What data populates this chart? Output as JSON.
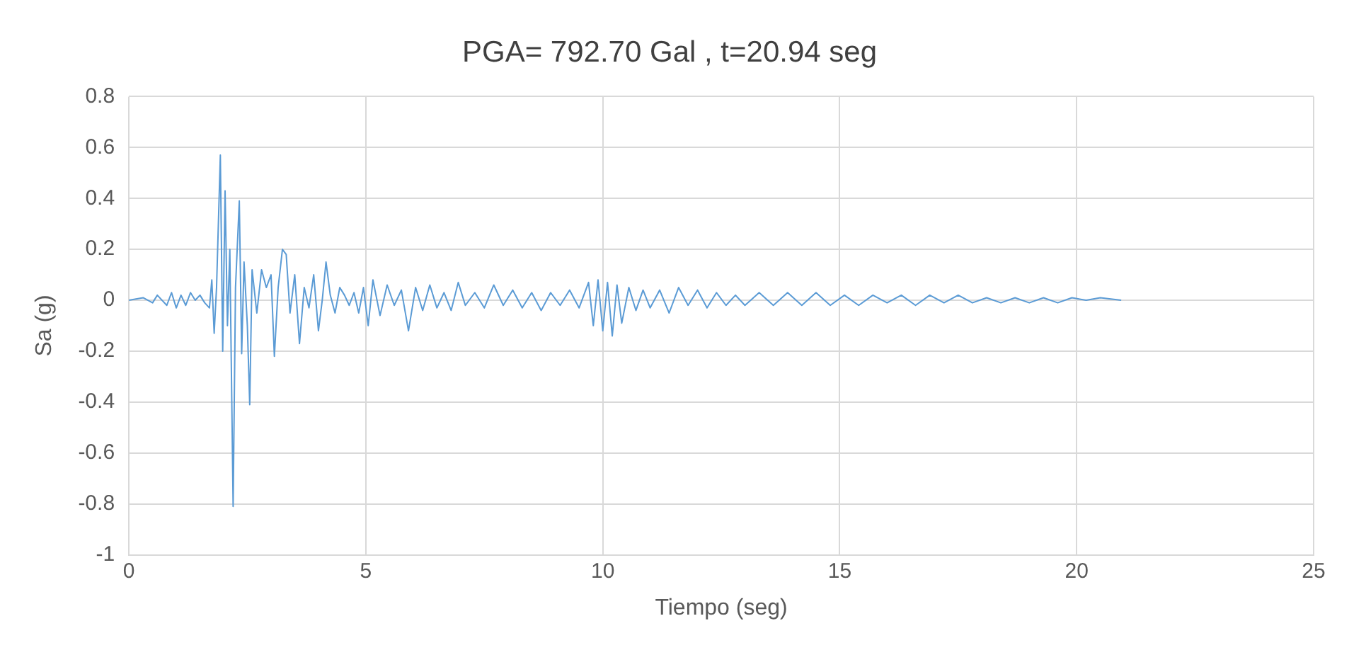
{
  "chart_data": {
    "type": "line",
    "title": "PGA= 792.70 Gal , t=20.94 seg",
    "xlabel": "Tiempo (seg)",
    "ylabel": "Sa (g)",
    "xlim": [
      0,
      25
    ],
    "xticks": [
      0,
      5,
      10,
      15,
      20,
      25
    ],
    "ylim": [
      -1,
      0.8
    ],
    "yticks": [
      0.8,
      0.6,
      0.4,
      0.2,
      0,
      -0.2,
      -0.4,
      -0.6,
      -0.8,
      -1
    ],
    "grid": true,
    "legend": false,
    "marker": "none",
    "line_style": "solid",
    "series": [
      {
        "color": "#5b9bd5",
        "x": [
          0,
          0.3,
          0.5,
          0.6,
          0.8,
          0.9,
          1.0,
          1.1,
          1.2,
          1.3,
          1.4,
          1.5,
          1.6,
          1.7,
          1.75,
          1.8,
          1.85,
          1.93,
          1.98,
          2.03,
          2.08,
          2.13,
          2.2,
          2.25,
          2.33,
          2.38,
          2.43,
          2.5,
          2.55,
          2.6,
          2.7,
          2.8,
          2.9,
          3.0,
          3.07,
          3.15,
          3.24,
          3.32,
          3.4,
          3.5,
          3.6,
          3.7,
          3.8,
          3.9,
          4.0,
          4.08,
          4.16,
          4.25,
          4.35,
          4.45,
          4.55,
          4.65,
          4.75,
          4.85,
          4.95,
          5.05,
          5.15,
          5.3,
          5.45,
          5.6,
          5.75,
          5.9,
          6.05,
          6.2,
          6.35,
          6.5,
          6.65,
          6.8,
          6.95,
          7.1,
          7.3,
          7.5,
          7.7,
          7.9,
          8.1,
          8.3,
          8.5,
          8.7,
          8.9,
          9.1,
          9.3,
          9.5,
          9.7,
          9.8,
          9.9,
          10.0,
          10.1,
          10.2,
          10.3,
          10.4,
          10.55,
          10.7,
          10.85,
          11.0,
          11.2,
          11.4,
          11.6,
          11.8,
          12.0,
          12.2,
          12.4,
          12.6,
          12.8,
          13.0,
          13.3,
          13.6,
          13.9,
          14.2,
          14.5,
          14.8,
          15.1,
          15.4,
          15.7,
          16.0,
          16.3,
          16.6,
          16.9,
          17.2,
          17.5,
          17.8,
          18.1,
          18.4,
          18.7,
          19.0,
          19.3,
          19.6,
          19.9,
          20.2,
          20.5,
          20.94
        ],
        "values": [
          0,
          0.01,
          -0.01,
          0.02,
          -0.02,
          0.03,
          -0.03,
          0.02,
          -0.02,
          0.03,
          0,
          0.02,
          -0.01,
          -0.03,
          0.08,
          -0.13,
          0.05,
          0.57,
          -0.2,
          0.43,
          -0.1,
          0.2,
          -0.81,
          0.05,
          0.39,
          -0.21,
          0.15,
          -0.1,
          -0.41,
          0.12,
          -0.05,
          0.12,
          0.05,
          0.1,
          -0.22,
          0.05,
          0.2,
          0.18,
          -0.05,
          0.1,
          -0.17,
          0.05,
          -0.03,
          0.1,
          -0.12,
          0,
          0.15,
          0.02,
          -0.05,
          0.05,
          0.02,
          -0.02,
          0.03,
          -0.05,
          0.05,
          -0.1,
          0.08,
          -0.06,
          0.06,
          -0.02,
          0.04,
          -0.12,
          0.05,
          -0.04,
          0.06,
          -0.03,
          0.03,
          -0.04,
          0.07,
          -0.02,
          0.03,
          -0.03,
          0.06,
          -0.02,
          0.04,
          -0.03,
          0.03,
          -0.04,
          0.03,
          -0.02,
          0.04,
          -0.03,
          0.07,
          -0.1,
          0.08,
          -0.12,
          0.07,
          -0.14,
          0.06,
          -0.09,
          0.05,
          -0.04,
          0.04,
          -0.03,
          0.04,
          -0.05,
          0.05,
          -0.02,
          0.04,
          -0.03,
          0.03,
          -0.02,
          0.02,
          -0.02,
          0.03,
          -0.02,
          0.03,
          -0.02,
          0.03,
          -0.02,
          0.02,
          -0.02,
          0.02,
          -0.01,
          0.02,
          -0.02,
          0.02,
          -0.01,
          0.02,
          -0.01,
          0.01,
          -0.01,
          0.01,
          -0.01,
          0.01,
          -0.01,
          0.01,
          0,
          0.01,
          0
        ]
      }
    ]
  }
}
